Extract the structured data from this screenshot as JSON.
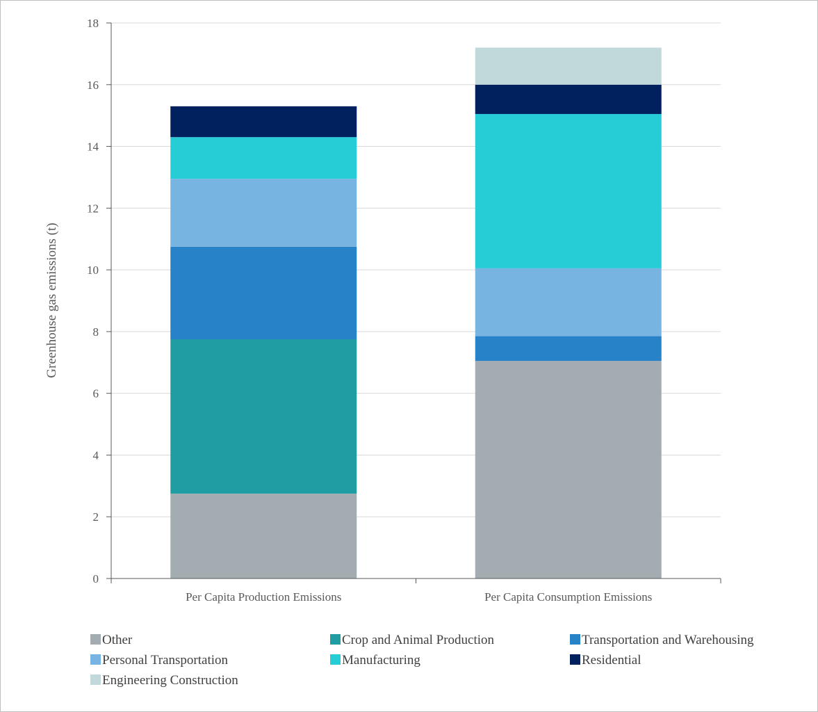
{
  "chart_data": {
    "type": "bar",
    "stacked": true,
    "ylabel": "Greenhouse gas emissions (t)",
    "ylim": [
      0,
      18
    ],
    "yticks": [
      0,
      2,
      4,
      6,
      8,
      10,
      12,
      14,
      16,
      18
    ],
    "grid": true,
    "legend_position": "bottom",
    "categories": [
      "Per Capita Production Emissions",
      "Per Capita Consumption Emissions"
    ],
    "series": [
      {
        "name": "Other",
        "color": "#A2ACB1",
        "values": [
          2.75,
          7.05
        ]
      },
      {
        "name": "Crop and Animal Production",
        "color": "#1F9DA3",
        "values": [
          5.0,
          0
        ]
      },
      {
        "name": "Transportation and Warehousing",
        "color": "#2782C8",
        "values": [
          3.0,
          0.8
        ]
      },
      {
        "name": "Personal Transportation",
        "color": "#78B4E2",
        "values": [
          2.2,
          2.2
        ]
      },
      {
        "name": "Manufacturing",
        "color": "#26CDD6",
        "values": [
          1.35,
          5.0
        ]
      },
      {
        "name": "Residential",
        "color": "#00205E",
        "values": [
          1.0,
          0.95
        ]
      },
      {
        "name": "Engineering Construction",
        "color": "#C1D9DB",
        "values": [
          0,
          1.2
        ]
      }
    ]
  }
}
